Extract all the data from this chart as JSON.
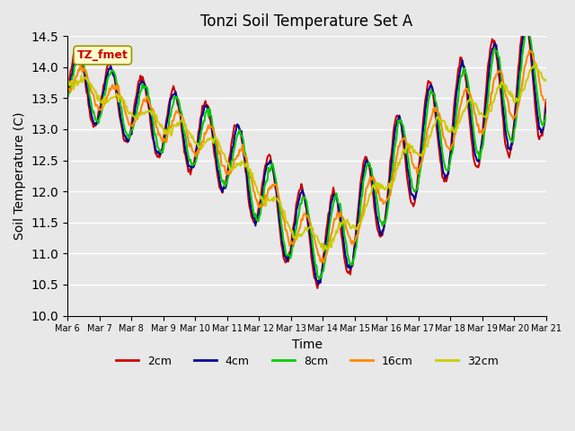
{
  "title": "Tonzi Soil Temperature Set A",
  "xlabel": "Time",
  "ylabel": "Soil Temperature (C)",
  "ylim": [
    10.0,
    14.5
  ],
  "background_color": "#e8e8e8",
  "legend_label": "TZ_fmet",
  "legend_box_color": "#ffffcc",
  "legend_box_edge": "#999900",
  "lines": [
    {
      "label": "2cm",
      "color": "#cc0000",
      "lw": 1.5
    },
    {
      "label": "4cm",
      "color": "#000099",
      "lw": 1.5
    },
    {
      "label": "8cm",
      "color": "#00cc00",
      "lw": 1.5
    },
    {
      "label": "16cm",
      "color": "#ff8800",
      "lw": 1.5
    },
    {
      "label": "32cm",
      "color": "#cccc00",
      "lw": 1.5
    }
  ],
  "xtick_labels": [
    "Mar 6",
    "Mar 7",
    "Mar 8",
    "Mar 9",
    "Mar 10",
    "Mar 11",
    "Mar 12",
    "Mar 13",
    "Mar 14",
    "Mar 15",
    "Mar 16",
    "Mar 17",
    "Mar 18",
    "Mar 19",
    "Mar 20",
    "Mar 21"
  ],
  "n_points": 480,
  "days": 15
}
